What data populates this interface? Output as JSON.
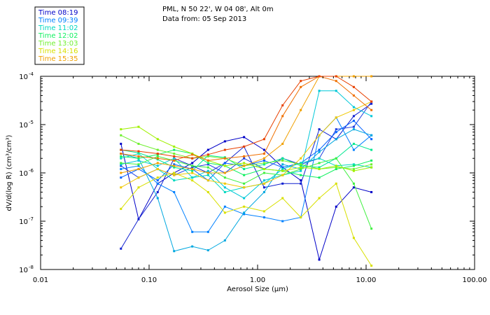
{
  "header": {
    "station": "PML, N 50 22', W 04 08', Alt 0m",
    "date": "Data from: 05 Sep 2013"
  },
  "chart_data": {
    "type": "line",
    "title": "PML, N 50 22', W 04 08', Alt 0m",
    "subtitle": "Data from: 05 Sep 2013",
    "xlabel": "Aerosol Size (µm)",
    "ylabel": "dV/d(log R) (cm³/cm³)",
    "xscale": "log",
    "yscale": "log",
    "xlim": [
      0.01,
      100
    ],
    "ylim": [
      1e-08,
      0.0001
    ],
    "x_ticks": [
      {
        "v": 0.01,
        "label": "0.01"
      },
      {
        "v": 0.1,
        "label": "0.10"
      },
      {
        "v": 1,
        "label": "1.00"
      },
      {
        "v": 10,
        "label": "10.00"
      },
      {
        "v": 100,
        "label": "100.00"
      }
    ],
    "y_ticks": [
      {
        "v": 1e-08,
        "mant": "10",
        "exp": "-8"
      },
      {
        "v": 1e-07,
        "mant": "10",
        "exp": "-7"
      },
      {
        "v": 1e-06,
        "mant": "10",
        "exp": "-6"
      },
      {
        "v": 1e-05,
        "mant": "10",
        "exp": "-5"
      },
      {
        "v": 0.0001,
        "mant": "10",
        "exp": "-4"
      }
    ],
    "x": [
      0.055,
      0.08,
      0.12,
      0.17,
      0.25,
      0.35,
      0.5,
      0.75,
      1.15,
      1.7,
      2.5,
      3.7,
      5.3,
      7.7,
      11.2
    ],
    "legend_position": "top-left outside",
    "series": [
      {
        "name": "Time 08:19",
        "color": "#0000c8",
        "values": [
          4e-06,
          1.1e-07,
          6e-07,
          1e-06,
          1.6e-06,
          3e-06,
          4.5e-06,
          5.5e-06,
          3e-06,
          1.3e-06,
          7e-07,
          1.6e-08,
          2e-07,
          5e-07,
          4e-07
        ]
      },
      {
        "name": "Time 08:19",
        "color": "#1020d0",
        "values": [
          2.7e-08,
          1.1e-07,
          4e-07,
          2e-06,
          1.4e-06,
          1e-06,
          1.6e-06,
          3.5e-06,
          5e-07,
          6e-07,
          6e-07,
          8e-06,
          5e-06,
          1.5e-05,
          2.7e-05
        ]
      },
      {
        "name": "Time 08:19",
        "color": "#2040e0",
        "values": [
          1.4e-06,
          8e-07,
          1.2e-06,
          9e-07,
          1.3e-06,
          1.5e-06,
          1e-06,
          2e-06,
          1.2e-06,
          2e-06,
          1.5e-06,
          2e-06,
          8e-06,
          9e-06,
          3e-05
        ]
      },
      {
        "name": "Time 09:39",
        "color": "#0060ff",
        "values": [
          8e-07,
          1.2e-06,
          7e-07,
          1.5e-06,
          1.2e-06,
          7e-07,
          1.6e-06,
          1.4e-06,
          1.8e-06,
          1.3e-06,
          1.6e-06,
          3e-06,
          7e-06,
          1.2e-05,
          5e-06
        ]
      },
      {
        "name": "Time 09:39",
        "color": "#0080ff",
        "values": [
          1.2e-06,
          1.4e-06,
          6e-07,
          4e-07,
          6e-08,
          6e-08,
          2e-07,
          1.4e-07,
          1.2e-07,
          1e-07,
          1.2e-07,
          6e-06,
          1.4e-05,
          3e-06,
          6e-06
        ]
      },
      {
        "name": "Time 09:39",
        "color": "#00a8e0",
        "values": [
          2.5e-06,
          2e-06,
          3e-07,
          2.4e-08,
          3e-08,
          2.5e-08,
          4e-08,
          1.5e-07,
          4e-07,
          1.5e-06,
          1.2e-06,
          2.7e-06,
          5e-06,
          8e-06,
          6e-06
        ]
      },
      {
        "name": "Time 11:02",
        "color": "#00c8d8",
        "values": [
          1.5e-06,
          1.8e-06,
          1.4e-06,
          2e-06,
          8e-07,
          1.1e-06,
          5e-07,
          3e-07,
          7e-07,
          9e-07,
          1.1e-06,
          5e-05,
          5e-05,
          2.3e-05,
          1.5e-05
        ]
      },
      {
        "name": "Time 11:02",
        "color": "#00d8c0",
        "values": [
          2e-06,
          2.5e-06,
          1.2e-06,
          7e-07,
          8e-07,
          9e-07,
          4e-07,
          5e-07,
          6e-07,
          1.2e-06,
          1.6e-06,
          2e-06,
          1.4e-06,
          1.5e-06,
          1.3e-06
        ]
      },
      {
        "name": "Time 12:02",
        "color": "#00e890",
        "values": [
          3e-06,
          2.6e-06,
          1.9e-06,
          1.3e-06,
          1.1e-06,
          2.3e-06,
          2.1e-06,
          1.2e-06,
          1.5e-06,
          2e-06,
          1.4e-06,
          1.3e-06,
          2e-06,
          4e-06,
          3e-06
        ]
      },
      {
        "name": "Time 12:02",
        "color": "#10f060",
        "values": [
          2.2e-06,
          2e-06,
          2.4e-06,
          3e-06,
          2.5e-06,
          1.6e-06,
          1.4e-06,
          9e-07,
          1.2e-06,
          1.1e-06,
          9e-07,
          8e-07,
          1.2e-06,
          1.4e-06,
          1.8e-06
        ]
      },
      {
        "name": "Time 13:03",
        "color": "#40f040",
        "values": [
          1.6e-06,
          1.5e-06,
          2.2e-06,
          1.8e-06,
          1.4e-06,
          1.3e-06,
          8e-07,
          6e-07,
          1e-06,
          9e-07,
          1.2e-06,
          1.6e-06,
          2e-06,
          6e-07,
          7e-08
        ]
      },
      {
        "name": "Time 13:03",
        "color": "#70f030",
        "values": [
          6e-06,
          4e-06,
          3e-06,
          2.5e-06,
          2e-06,
          2.2e-06,
          2e-06,
          1.4e-06,
          1.6e-06,
          1.8e-06,
          1.5e-06,
          1.2e-06,
          1.3e-06,
          1.2e-06,
          1.5e-06
        ]
      },
      {
        "name": "Time 14:16",
        "color": "#a0f000",
        "values": [
          8e-06,
          9e-06,
          5e-06,
          3.5e-06,
          2.5e-06,
          1.8e-06,
          1.4e-06,
          1.6e-06,
          1.2e-06,
          1.1e-06,
          1.3e-06,
          1.2e-06,
          1.4e-06,
          1.1e-06,
          1.3e-06
        ]
      },
      {
        "name": "Time 14:16",
        "color": "#d8e000",
        "values": [
          1.8e-07,
          5e-07,
          8e-07,
          1e-06,
          7e-07,
          4e-07,
          1.5e-07,
          2e-07,
          1.6e-07,
          3e-07,
          1.2e-07,
          3e-07,
          6e-07,
          4.5e-08,
          1.2e-08
        ]
      },
      {
        "name": "Time 14:16",
        "color": "#f0c800",
        "values": [
          5e-07,
          8e-07,
          1.2e-06,
          9e-07,
          1e-06,
          7e-07,
          6e-07,
          5e-07,
          6e-07,
          9e-07,
          2e-06,
          6e-06,
          1.4e-05,
          2e-05,
          3e-05
        ]
      },
      {
        "name": "Time 15:35",
        "color": "#f0a000",
        "values": [
          1e-06,
          1.2e-06,
          1.6e-06,
          1.4e-06,
          1.2e-06,
          1e-06,
          1e-06,
          1.4e-06,
          2e-06,
          4e-06,
          2e-05,
          0.0001,
          0.0001,
          0.0001,
          0.0001
        ]
      },
      {
        "name": "Time 15:35",
        "color": "#f07000",
        "values": [
          2.5e-06,
          2.2e-06,
          2e-06,
          1.8e-06,
          2.4e-06,
          1.8e-06,
          2e-06,
          2.2e-06,
          2.5e-06,
          1.5e-05,
          6e-05,
          0.0001,
          8e-05,
          4e-05,
          2e-05
        ]
      },
      {
        "name": "Time 15:35",
        "color": "#e84000",
        "values": [
          3e-06,
          2.8e-06,
          2.5e-06,
          2.2e-06,
          2e-06,
          2.4e-06,
          3e-06,
          3.5e-06,
          5e-06,
          2.5e-05,
          8e-05,
          0.0001,
          0.0001,
          6e-05,
          3e-05
        ]
      }
    ],
    "legend_entries": [
      {
        "label": "Time 08:19",
        "color": "#0000c8"
      },
      {
        "label": "Time 09:39",
        "color": "#0080ff"
      },
      {
        "label": "Time 11:02",
        "color": "#00d8c0"
      },
      {
        "label": "Time 12:02",
        "color": "#10f060"
      },
      {
        "label": "Time 13:03",
        "color": "#70f030"
      },
      {
        "label": "Time 14:16",
        "color": "#d8e000"
      },
      {
        "label": "Time 15:35",
        "color": "#f0a000"
      }
    ]
  }
}
